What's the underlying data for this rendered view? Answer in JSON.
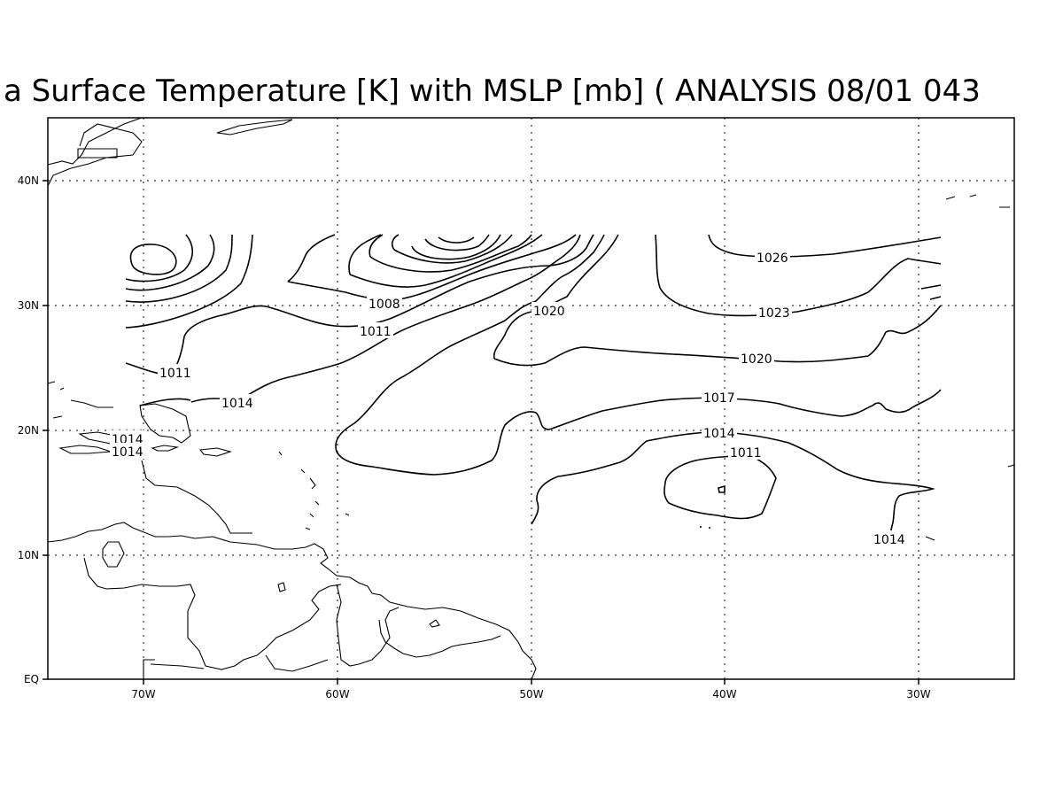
{
  "title": "a Surface Temperature [K] with MSLP [mb] ( ANALYSIS 08/01 043",
  "axes": {
    "x_ticks": [
      "70W",
      "60W",
      "50W",
      "40W",
      "30W"
    ],
    "y_ticks": [
      "40N",
      "30N",
      "20N",
      "10N",
      "EQ"
    ]
  },
  "contour_labels": [
    "1026",
    "1023",
    "1020",
    "1020",
    "1017",
    "1014",
    "1011",
    "1014",
    "1008",
    "1011",
    "1011",
    "1014",
    "1014",
    "1014"
  ],
  "chart_data": {
    "type": "contour",
    "field": "Mean sea level pressure",
    "lon_range": [
      -75,
      -25
    ],
    "lat_range": [
      0,
      45
    ],
    "grid": true,
    "contour_levels": [
      1008,
      1011,
      1014,
      1017,
      1020,
      1023,
      1026
    ]
  }
}
